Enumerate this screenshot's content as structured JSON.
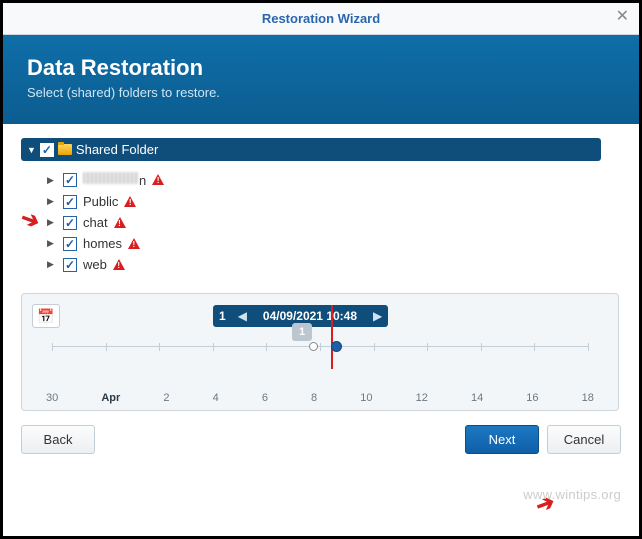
{
  "window": {
    "title": "Restoration Wizard"
  },
  "banner": {
    "heading": "Data Restoration",
    "subtext": "Select (shared) folders to restore."
  },
  "tree": {
    "root_label": "Shared Folder",
    "items": [
      {
        "label": "",
        "blurred": true
      },
      {
        "label": "Public"
      },
      {
        "label": "chat"
      },
      {
        "label": "homes"
      },
      {
        "label": "web"
      }
    ]
  },
  "timeline": {
    "badge": "1",
    "datetime": "04/09/2021 10:48",
    "point_label": "1",
    "marker_percent": 52,
    "handle_percent": 48,
    "dates": [
      "30",
      "Apr",
      "2",
      "4",
      "6",
      "8",
      "10",
      "12",
      "14",
      "16",
      "18"
    ],
    "bold_index": 1
  },
  "buttons": {
    "back": "Back",
    "next": "Next",
    "cancel": "Cancel"
  },
  "watermark": "www.wintips.org",
  "colors": {
    "banner_bg": "#0f6ea8",
    "primary_btn": "#1d5fa8",
    "root_row": "#0f4d7b",
    "warning": "#d81e1e"
  }
}
